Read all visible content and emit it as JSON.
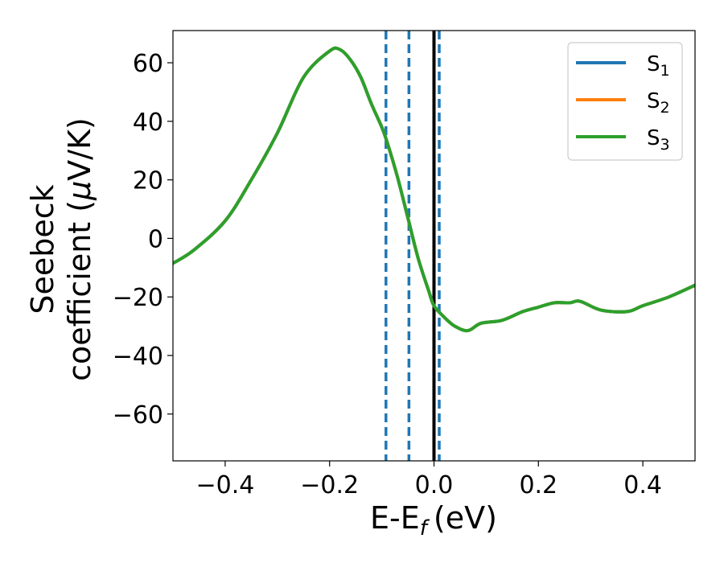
{
  "chart_data": {
    "type": "line",
    "xlabel": "E-E",
    "xlabel_sub": "f",
    "xlabel_unit": "(eV)",
    "ylabel_line1": "Seebeck",
    "ylabel_line2": "coefficient  (",
    "ylabel_mu": "μ",
    "ylabel_unit": "V/K)",
    "xlim": [
      -0.5,
      0.5
    ],
    "ylim": [
      -76,
      71
    ],
    "xticks": [
      -0.4,
      -0.2,
      0.0,
      0.2,
      0.4
    ],
    "xtick_labels": [
      "−0.4",
      "−0.2",
      "0.0",
      "0.2",
      "0.4"
    ],
    "yticks": [
      60,
      40,
      20,
      0,
      -20,
      -40,
      -60
    ],
    "ytick_labels": [
      "60",
      "40",
      "20",
      "0",
      "−20",
      "−40",
      "−60"
    ],
    "legend_position": "top-right",
    "grid": false,
    "series": [
      {
        "name": "S",
        "sub": "1",
        "color": "#1f77b4",
        "x": [
          -0.5,
          -0.46,
          -0.4,
          -0.35,
          -0.3,
          -0.25,
          -0.2,
          -0.18,
          -0.16,
          -0.14,
          -0.12,
          -0.1,
          -0.09,
          -0.07,
          -0.05,
          -0.03,
          -0.01,
          0.0,
          0.02,
          0.04,
          0.065,
          0.09,
          0.13,
          0.17,
          0.2,
          0.23,
          0.26,
          0.28,
          0.32,
          0.37,
          0.4,
          0.45,
          0.5
        ],
        "y": [
          -8.5,
          -4,
          6,
          20,
          36,
          55,
          64,
          64.5,
          61,
          55,
          46,
          38,
          33,
          21,
          7,
          -7,
          -18,
          -23,
          -27,
          -30,
          -31.5,
          -29,
          -28,
          -25,
          -23.5,
          -22,
          -22,
          -21.5,
          -24.5,
          -25,
          -23,
          -20,
          -16
        ]
      },
      {
        "name": "S",
        "sub": "2",
        "color": "#ff7f0e",
        "x": [
          -0.5,
          -0.46,
          -0.4,
          -0.35,
          -0.3,
          -0.25,
          -0.2,
          -0.18,
          -0.16,
          -0.14,
          -0.12,
          -0.1,
          -0.09,
          -0.07,
          -0.05,
          -0.03,
          -0.01,
          0.0,
          0.02,
          0.04,
          0.065,
          0.09,
          0.13,
          0.17,
          0.2,
          0.23,
          0.26,
          0.28,
          0.32,
          0.37,
          0.4,
          0.45,
          0.5
        ],
        "y": [
          -8.5,
          -4,
          6,
          20,
          36,
          55,
          64,
          64.5,
          61,
          55,
          46,
          38,
          33,
          21,
          7,
          -7,
          -18,
          -23,
          -27,
          -30,
          -31.5,
          -29,
          -28,
          -25,
          -23.5,
          -22,
          -22,
          -21.5,
          -24.5,
          -25,
          -23,
          -20,
          -16
        ]
      },
      {
        "name": "S",
        "sub": "3",
        "color": "#2ca02c",
        "x": [
          -0.5,
          -0.46,
          -0.4,
          -0.35,
          -0.3,
          -0.25,
          -0.2,
          -0.18,
          -0.16,
          -0.14,
          -0.12,
          -0.1,
          -0.09,
          -0.07,
          -0.05,
          -0.03,
          -0.01,
          0.0,
          0.02,
          0.04,
          0.065,
          0.09,
          0.13,
          0.17,
          0.2,
          0.23,
          0.26,
          0.28,
          0.32,
          0.37,
          0.4,
          0.45,
          0.5
        ],
        "y": [
          -8.5,
          -4,
          6,
          20,
          36,
          55,
          64,
          64.5,
          61,
          55,
          46,
          38,
          33,
          21,
          7,
          -7,
          -18,
          -23,
          -27,
          -30,
          -31.5,
          -29,
          -28,
          -25,
          -23.5,
          -22,
          -22,
          -21.5,
          -24.5,
          -25,
          -23,
          -20,
          -16
        ]
      }
    ],
    "vlines": [
      {
        "x": -0.092,
        "style": "dashed",
        "color": "#1f77b4"
      },
      {
        "x": -0.048,
        "style": "dashed",
        "color": "#1f77b4"
      },
      {
        "x": 0.0,
        "style": "solid",
        "color": "#000000"
      },
      {
        "x": 0.01,
        "style": "dashed",
        "color": "#1f77b4"
      }
    ]
  }
}
